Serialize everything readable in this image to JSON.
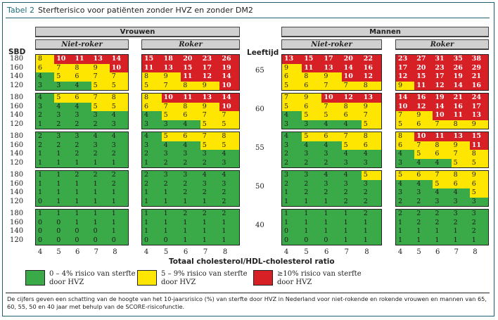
{
  "title_number": "Tabel 2",
  "title": "Sterfterisico voor patiënten zonder HVZ en zonder DM2",
  "groups": [
    {
      "label": "Vrouwen",
      "subs": [
        "Niet-roker",
        "Roker"
      ]
    },
    {
      "label": "Mannen",
      "subs": [
        "Niet-roker",
        "Roker"
      ]
    }
  ],
  "row_axis_label": "SBD",
  "age_axis_label": "Leeftijd",
  "xlabel": "Totaal cholesterol/HDL-cholesterol ratio",
  "legend": [
    {
      "label": "0 – 4% risico van sterfte door HVZ",
      "color": "#3aaa48"
    },
    {
      "label": "5 – 9% risico van sterfte door HVZ",
      "color": "#ffe600"
    },
    {
      "label": "≥10% risico van sterfte door HVZ",
      "color": "#d71f26"
    }
  ],
  "footnote": "De cijfers geven een schatting van de hoogte van het 10-jaarsrisico (%) van sterfte door HVZ in Nederland voor niet-rokende en rokende vrouwen en mannen van 65, 60, 55, 50 en 40 jaar met behulp van de SCORE-risicofunctie.",
  "chart_data": {
    "type": "heatmap",
    "title": "Sterfterisico voor patiënten zonder HVZ en zonder DM2",
    "xlabel": "Totaal cholesterol/HDL-cholesterol ratio",
    "ylabel": "SBD",
    "x": [
      4,
      5,
      6,
      7,
      8
    ],
    "sbd": [
      180,
      160,
      140,
      120
    ],
    "ages": [
      65,
      60,
      55,
      50,
      40
    ],
    "color_scale": [
      {
        "min": 0,
        "max": 4,
        "color": "#3aaa48"
      },
      {
        "min": 5,
        "max": 9,
        "color": "#ffe600"
      },
      {
        "min": 10,
        "max": 100,
        "color": "#d71f26"
      }
    ],
    "panels": [
      {
        "name": "Vrouwen Niet-roker",
        "blocks": [
          [
            [
              8,
              10,
              11,
              13,
              14
            ],
            [
              6,
              7,
              8,
              9,
              10
            ],
            [
              4,
              5,
              6,
              7,
              7
            ],
            [
              3,
              3,
              4,
              5,
              5
            ]
          ],
          [
            [
              4,
              5,
              6,
              7,
              8
            ],
            [
              3,
              4,
              4,
              5,
              5
            ],
            [
              2,
              3,
              3,
              3,
              4
            ],
            [
              1,
              2,
              2,
              2,
              3
            ]
          ],
          [
            [
              2,
              3,
              3,
              4,
              4
            ],
            [
              2,
              2,
              2,
              3,
              3
            ],
            [
              1,
              1,
              2,
              2,
              2
            ],
            [
              1,
              1,
              1,
              1,
              1
            ]
          ],
          [
            [
              1,
              1,
              2,
              2,
              2
            ],
            [
              1,
              1,
              1,
              1,
              2
            ],
            [
              1,
              1,
              1,
              1,
              1
            ],
            [
              0,
              1,
              1,
              1,
              1
            ]
          ],
          [
            [
              1,
              1,
              1,
              1,
              1
            ],
            [
              0,
              0,
              1,
              1,
              1
            ],
            [
              0,
              0,
              0,
              0,
              1
            ],
            [
              0,
              0,
              0,
              0,
              0
            ]
          ]
        ]
      },
      {
        "name": "Vrouwen Roker",
        "blocks": [
          [
            [
              15,
              18,
              20,
              23,
              26
            ],
            [
              11,
              13,
              15,
              17,
              19
            ],
            [
              8,
              9,
              11,
              12,
              14
            ],
            [
              5,
              7,
              8,
              9,
              10
            ]
          ],
          [
            [
              8,
              10,
              11,
              13,
              14
            ],
            [
              6,
              7,
              8,
              9,
              10
            ],
            [
              4,
              5,
              6,
              7,
              7
            ],
            [
              3,
              3,
              4,
              5,
              5
            ]
          ],
          [
            [
              4,
              5,
              6,
              7,
              8
            ],
            [
              3,
              4,
              4,
              5,
              5
            ],
            [
              2,
              3,
              3,
              3,
              4
            ],
            [
              1,
              2,
              2,
              2,
              3
            ]
          ],
          [
            [
              2,
              3,
              3,
              4,
              4
            ],
            [
              2,
              2,
              2,
              3,
              3
            ],
            [
              1,
              1,
              2,
              2,
              2
            ],
            [
              1,
              1,
              1,
              1,
              2
            ]
          ],
          [
            [
              1,
              1,
              2,
              2,
              2
            ],
            [
              1,
              1,
              1,
              1,
              1
            ],
            [
              1,
              1,
              1,
              1,
              1
            ],
            [
              0,
              0,
              1,
              1,
              1
            ]
          ]
        ]
      },
      {
        "name": "Mannen Niet-roker",
        "blocks": [
          [
            [
              13,
              15,
              17,
              20,
              22
            ],
            [
              9,
              11,
              13,
              14,
              16
            ],
            [
              6,
              8,
              9,
              10,
              12
            ],
            [
              5,
              6,
              7,
              7,
              8
            ]
          ],
          [
            [
              7,
              9,
              10,
              12,
              13
            ],
            [
              5,
              6,
              7,
              8,
              9
            ],
            [
              4,
              5,
              5,
              6,
              7
            ],
            [
              3,
              3,
              4,
              4,
              5
            ]
          ],
          [
            [
              4,
              5,
              6,
              7,
              8
            ],
            [
              3,
              4,
              4,
              5,
              6
            ],
            [
              2,
              3,
              3,
              4,
              4
            ],
            [
              2,
              2,
              2,
              3,
              3
            ]
          ],
          [
            [
              3,
              3,
              4,
              4,
              5
            ],
            [
              2,
              2,
              3,
              3,
              3
            ],
            [
              1,
              2,
              2,
              2,
              2
            ],
            [
              1,
              1,
              1,
              2,
              2
            ]
          ],
          [
            [
              1,
              1,
              1,
              1,
              2
            ],
            [
              1,
              1,
              1,
              1,
              1
            ],
            [
              0,
              1,
              1,
              1,
              1
            ],
            [
              0,
              0,
              0,
              1,
              1
            ]
          ]
        ]
      },
      {
        "name": "Mannen Roker",
        "blocks": [
          [
            [
              23,
              27,
              31,
              35,
              38
            ],
            [
              17,
              20,
              23,
              26,
              29
            ],
            [
              12,
              15,
              17,
              19,
              21
            ],
            [
              9,
              11,
              12,
              14,
              16
            ]
          ],
          [
            [
              14,
              16,
              19,
              21,
              24
            ],
            [
              10,
              12,
              14,
              16,
              17
            ],
            [
              7,
              9,
              10,
              11,
              13
            ],
            [
              5,
              6,
              7,
              8,
              9
            ]
          ],
          [
            [
              8,
              10,
              11,
              13,
              15
            ],
            [
              6,
              7,
              8,
              9,
              11
            ],
            [
              4,
              5,
              6,
              7,
              8
            ],
            [
              3,
              4,
              4,
              5,
              5
            ]
          ],
          [
            [
              5,
              6,
              7,
              8,
              9
            ],
            [
              4,
              4,
              5,
              6,
              6
            ],
            [
              3,
              3,
              4,
              4,
              5
            ],
            [
              2,
              2,
              3,
              3,
              3
            ]
          ],
          [
            [
              2,
              2,
              2,
              3,
              3
            ],
            [
              1,
              2,
              2,
              2,
              2
            ],
            [
              1,
              1,
              1,
              1,
              2
            ],
            [
              1,
              1,
              1,
              1,
              1
            ]
          ]
        ]
      }
    ]
  }
}
